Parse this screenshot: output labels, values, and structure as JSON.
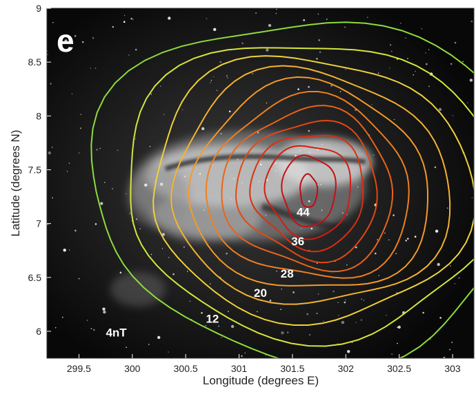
{
  "panel_letter": "e",
  "chart_data": {
    "type": "contour",
    "xlabel": "Longitude (degrees E)",
    "ylabel": "Latitude (degrees N)",
    "xlim": [
      299.2,
      303.2
    ],
    "ylim": [
      5.75,
      9.0
    ],
    "x_ticks": [
      {
        "value": 299.5,
        "label": "299.5"
      },
      {
        "value": 300,
        "label": "300"
      },
      {
        "value": 300.5,
        "label": "300.5"
      },
      {
        "value": 301,
        "label": "301"
      },
      {
        "value": 301.5,
        "label": "301.5"
      },
      {
        "value": 302,
        "label": "302"
      },
      {
        "value": 302.5,
        "label": "302.5"
      },
      {
        "value": 303,
        "label": "303"
      }
    ],
    "y_ticks": [
      {
        "value": 6,
        "label": "6"
      },
      {
        "value": 6.5,
        "label": "6.5"
      },
      {
        "value": 7,
        "label": "7"
      },
      {
        "value": 7.5,
        "label": "7.5"
      },
      {
        "value": 8,
        "label": "8"
      },
      {
        "value": 8.5,
        "label": "8.5"
      },
      {
        "value": 9,
        "label": "9"
      }
    ],
    "background": "grayscale image",
    "contour_center": [
      301.65,
      7.3
    ],
    "contours": [
      {
        "level": 4,
        "color": "#8fdc3c",
        "rx": 2.05,
        "ry": 1.55
      },
      {
        "level": 8,
        "color": "#d6e63c",
        "rx": 1.75,
        "ry": 1.35
      },
      {
        "level": 12,
        "color": "#f0d23a",
        "rx": 1.5,
        "ry": 1.2
      },
      {
        "level": 16,
        "color": "#f5b430",
        "rx": 1.3,
        "ry": 1.06
      },
      {
        "level": 20,
        "color": "#f59a28",
        "rx": 1.12,
        "ry": 0.94
      },
      {
        "level": 24,
        "color": "#f08020",
        "rx": 0.95,
        "ry": 0.82
      },
      {
        "level": 28,
        "color": "#ea6418",
        "rx": 0.8,
        "ry": 0.72
      },
      {
        "level": 32,
        "color": "#e44812",
        "rx": 0.66,
        "ry": 0.62
      },
      {
        "level": 36,
        "color": "#dc2e10",
        "rx": 0.53,
        "ry": 0.52
      },
      {
        "level": 40,
        "color": "#d41c10",
        "rx": 0.4,
        "ry": 0.42
      },
      {
        "level": 44,
        "color": "#c80e12",
        "rx": 0.25,
        "ry": 0.32
      },
      {
        "level": 48,
        "color": "#c00a14",
        "rx": 0.08,
        "ry": 0.15
      }
    ],
    "labels": [
      {
        "text": "4nT",
        "x": 299.85,
        "y": 5.95
      },
      {
        "text": "12",
        "x": 300.75,
        "y": 6.08
      },
      {
        "text": "20",
        "x": 301.2,
        "y": 6.32
      },
      {
        "text": "28",
        "x": 301.45,
        "y": 6.5
      },
      {
        "text": "36",
        "x": 301.55,
        "y": 6.8
      },
      {
        "text": "44",
        "x": 301.6,
        "y": 7.07
      }
    ]
  }
}
